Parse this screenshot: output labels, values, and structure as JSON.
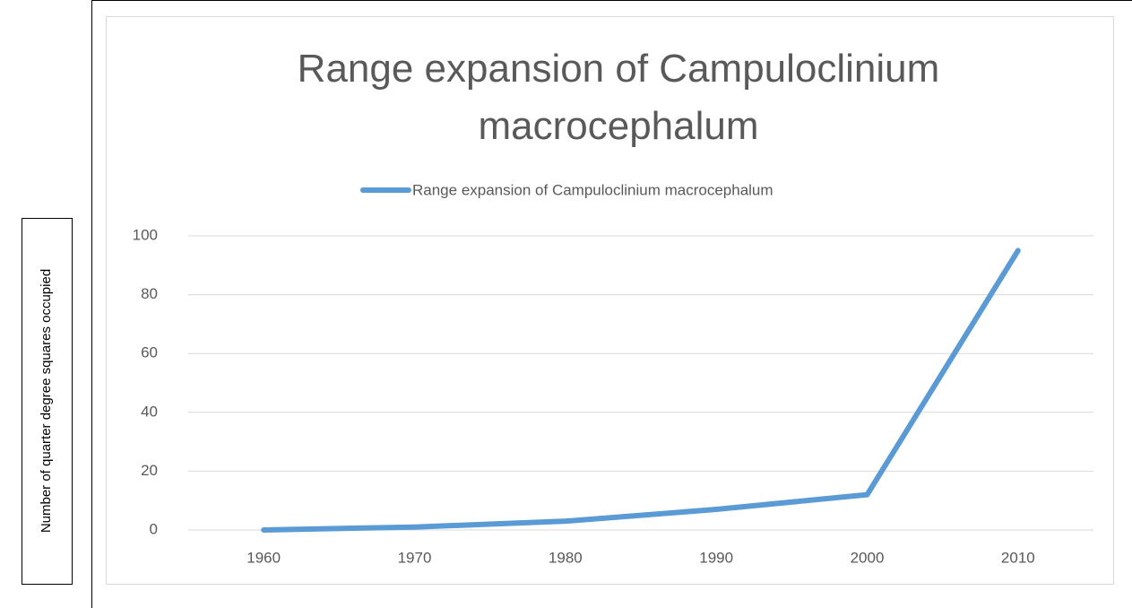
{
  "chart_data": {
    "type": "line",
    "title": "Range expansion of Campuloclinium macrocephalum",
    "y_label": "Number of quarter degree squares occupied",
    "categories": [
      "1960",
      "1970",
      "1980",
      "1990",
      "2000",
      "2010"
    ],
    "series": [
      {
        "name": "Range expansion of Campuloclinium macrocephalum",
        "color": "#5b9bd5",
        "values": [
          0,
          1,
          3,
          7,
          12,
          95
        ]
      }
    ],
    "ylim": [
      0,
      100
    ],
    "yticks": [
      0,
      20,
      40,
      60,
      80,
      100
    ],
    "grid": true,
    "legend": "top"
  }
}
